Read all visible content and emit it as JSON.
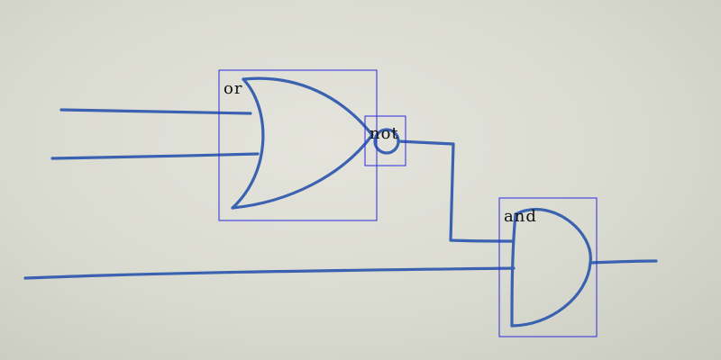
{
  "diagram": {
    "colors": {
      "ink": "#3b62b0",
      "box": "#2a2ae0",
      "paper": "#d9dad0",
      "label": "#111111"
    },
    "gates": [
      {
        "id": "or",
        "label": "or"
      },
      {
        "id": "not",
        "label": "not"
      },
      {
        "id": "and",
        "label": "and"
      }
    ]
  }
}
